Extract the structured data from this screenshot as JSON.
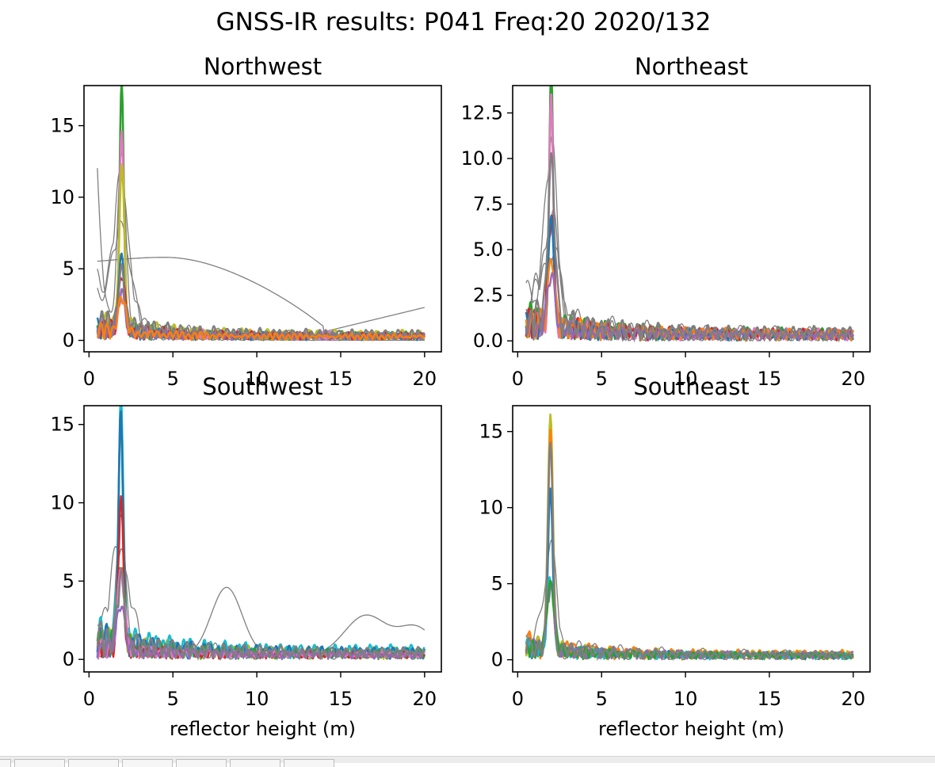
{
  "suptitle": "GNSS-IR results: P041 Freq:20 2020/132",
  "colors": {
    "tab10": [
      "#1f77b4",
      "#ff7f0e",
      "#2ca02c",
      "#d62728",
      "#9467bd",
      "#8c564b",
      "#e377c2",
      "#7f7f7f",
      "#bcbd22",
      "#17becf"
    ],
    "rejected": "#808080"
  },
  "chart_data": [
    {
      "type": "line",
      "title": "Northwest",
      "xlabel": "",
      "ylabel": "",
      "xlim": [
        -0.3,
        21
      ],
      "ylim": [
        -0.8,
        17.8
      ],
      "xticks": [
        0,
        5,
        10,
        15,
        20
      ],
      "yticks": [
        0,
        5,
        10,
        15
      ],
      "ytick_labels": [
        "0",
        "5",
        "10",
        "15"
      ],
      "peak_x": 1.95,
      "series": [
        {
          "color": "#2ca02c",
          "peak": 16.9,
          "width": 0.18,
          "noise": 1.1,
          "lw": 2.6
        },
        {
          "color": "#e377c2",
          "peak": 14.2,
          "width": 0.18,
          "noise": 1.0,
          "lw": 2.6
        },
        {
          "color": "#bcbd22",
          "peak": 11.2,
          "width": 0.22,
          "noise": 1.3,
          "lw": 2.6
        },
        {
          "color": "#1f77b4",
          "peak": 5.0,
          "width": 0.25,
          "noise": 0.9,
          "lw": 2.4
        },
        {
          "color": "#d62728",
          "peak": 4.0,
          "width": 0.25,
          "noise": 1.0,
          "lw": 2.4
        },
        {
          "color": "#9467bd",
          "peak": 3.0,
          "width": 0.25,
          "noise": 0.8,
          "lw": 2.4
        },
        {
          "color": "#7f7f7f",
          "peak": 3.5,
          "width": 0.3,
          "noise": 1.4,
          "lw": 2.4
        },
        {
          "color": "#ff7f0e",
          "peak": 2.5,
          "width": 0.3,
          "noise": 0.7,
          "lw": 2.4
        }
      ],
      "thin_series": [
        {
          "kind": "decay",
          "start": 11.6,
          "peak": 12.7,
          "width": 0.35,
          "noise": 0.6
        },
        {
          "kind": "broad",
          "start": 5.3,
          "hump": 5.8,
          "hump_x": 4.5,
          "end": 2.3,
          "noise": 0.0
        },
        {
          "kind": "spiky",
          "start": 4.0,
          "peak": 9.6,
          "width": 0.6,
          "noise": 1.2
        },
        {
          "kind": "spiky",
          "start": 2.5,
          "peak": 6.5,
          "width": 0.8,
          "noise": 1.0
        }
      ]
    },
    {
      "type": "line",
      "title": "Northeast",
      "xlabel": "",
      "ylabel": "",
      "xlim": [
        -0.3,
        21
      ],
      "ylim": [
        -0.6,
        14.0
      ],
      "xticks": [
        0,
        5,
        10,
        15,
        20
      ],
      "yticks": [
        0,
        2.5,
        5,
        7.5,
        10,
        12.5
      ],
      "ytick_labels": [
        "0.0",
        "2.5",
        "5.0",
        "7.5",
        "10.0",
        "12.5"
      ],
      "peak_x": 2.0,
      "series": [
        {
          "color": "#2ca02c",
          "peak": 13.3,
          "width": 0.17,
          "noise": 1.3,
          "lw": 2.6
        },
        {
          "color": "#e377c2",
          "peak": 12.9,
          "width": 0.17,
          "noise": 1.2,
          "lw": 2.6
        },
        {
          "color": "#d62728",
          "peak": 6.0,
          "width": 0.25,
          "noise": 1.2,
          "lw": 2.4
        },
        {
          "color": "#1f77b4",
          "peak": 5.5,
          "width": 0.25,
          "noise": 1.0,
          "lw": 2.4
        },
        {
          "color": "#ff7f0e",
          "peak": 4.0,
          "width": 0.25,
          "noise": 1.2,
          "lw": 2.4
        },
        {
          "color": "#9467bd",
          "peak": 3.0,
          "width": 0.3,
          "noise": 0.9,
          "lw": 2.4
        },
        {
          "color": "#7f7f7f",
          "peak": 8.5,
          "width": 0.3,
          "noise": 1.5,
          "lw": 2.4
        }
      ],
      "thin_series": [
        {
          "kind": "spiky",
          "start": 2.8,
          "peak": 9.0,
          "width": 0.5,
          "noise": 1.5
        },
        {
          "kind": "spiky",
          "start": 1.5,
          "peak": 5.5,
          "width": 0.7,
          "noise": 1.3
        },
        {
          "kind": "spiky",
          "start": 1.0,
          "peak": 4.0,
          "width": 0.9,
          "noise": 1.1
        }
      ]
    },
    {
      "type": "line",
      "title": "Southwest",
      "xlabel": "reflector height (m)",
      "ylabel": "",
      "xlim": [
        -0.3,
        21
      ],
      "ylim": [
        -0.8,
        16.2
      ],
      "xticks": [
        0,
        5,
        10,
        15,
        20
      ],
      "yticks": [
        0,
        5,
        10,
        15
      ],
      "ytick_labels": [
        "0",
        "5",
        "10",
        "15"
      ],
      "peak_x": 1.9,
      "series": [
        {
          "color": "#bcbd22",
          "peak": 15.4,
          "width": 0.2,
          "noise": 1.4,
          "lw": 2.6
        },
        {
          "color": "#17becf",
          "peak": 15.1,
          "width": 0.2,
          "noise": 1.8,
          "lw": 2.6
        },
        {
          "color": "#1f77b4",
          "peak": 14.2,
          "width": 0.2,
          "noise": 1.5,
          "lw": 2.6
        },
        {
          "color": "#2ca02c",
          "peak": 5.5,
          "width": 0.3,
          "noise": 1.1,
          "lw": 2.4
        },
        {
          "color": "#d62728",
          "peak": 9.6,
          "width": 0.2,
          "noise": 0.8,
          "lw": 2.4
        },
        {
          "color": "#e377c2",
          "peak": 5.0,
          "width": 0.3,
          "noise": 0.8,
          "lw": 2.4
        },
        {
          "color": "#9467bd",
          "peak": 3.0,
          "width": 0.3,
          "noise": 0.9,
          "lw": 2.4
        },
        {
          "color": "#7f7f7f",
          "peak": 4.0,
          "width": 0.3,
          "noise": 1.5,
          "lw": 2.4
        }
      ],
      "thin_series": [
        {
          "kind": "bumpy",
          "start": 0.2,
          "peak": 9.0,
          "width": 0.4,
          "noise": 0.3
        },
        {
          "kind": "spiky",
          "start": 2.0,
          "peak": 6.0,
          "width": 0.7,
          "noise": 1.4
        }
      ]
    },
    {
      "type": "line",
      "title": "Southeast",
      "xlabel": "reflector height (m)",
      "ylabel": "",
      "xlim": [
        -0.3,
        21
      ],
      "ylim": [
        -0.8,
        16.7
      ],
      "xticks": [
        0,
        5,
        10,
        15,
        20
      ],
      "yticks": [
        0,
        5,
        10,
        15
      ],
      "ytick_labels": [
        "0",
        "5",
        "10",
        "15"
      ],
      "peak_x": 1.95,
      "series": [
        {
          "color": "#bcbd22",
          "peak": 16.0,
          "width": 0.2,
          "noise": 1.0,
          "lw": 2.6
        },
        {
          "color": "#ff7f0e",
          "peak": 13.8,
          "width": 0.2,
          "noise": 1.1,
          "lw": 2.6
        },
        {
          "color": "#1f77b4",
          "peak": 10.5,
          "width": 0.2,
          "noise": 0.8,
          "lw": 2.4
        },
        {
          "color": "#17becf",
          "peak": 5.0,
          "width": 0.25,
          "noise": 0.8,
          "lw": 2.4
        },
        {
          "color": "#9467bd",
          "peak": 4.0,
          "width": 0.3,
          "noise": 0.9,
          "lw": 2.4
        },
        {
          "color": "#2ca02c",
          "peak": 4.5,
          "width": 0.3,
          "noise": 0.8,
          "lw": 2.4
        },
        {
          "color": "#7f7f7f",
          "peak": 14.0,
          "width": 0.2,
          "noise": 1.0,
          "lw": 2.4
        }
      ],
      "thin_series": [
        {
          "kind": "spiky",
          "start": 0.3,
          "peak": 13.9,
          "width": 0.25,
          "noise": 1.0
        },
        {
          "kind": "spiky",
          "start": 1.0,
          "peak": 6.5,
          "width": 0.5,
          "noise": 1.2
        }
      ]
    }
  ]
}
